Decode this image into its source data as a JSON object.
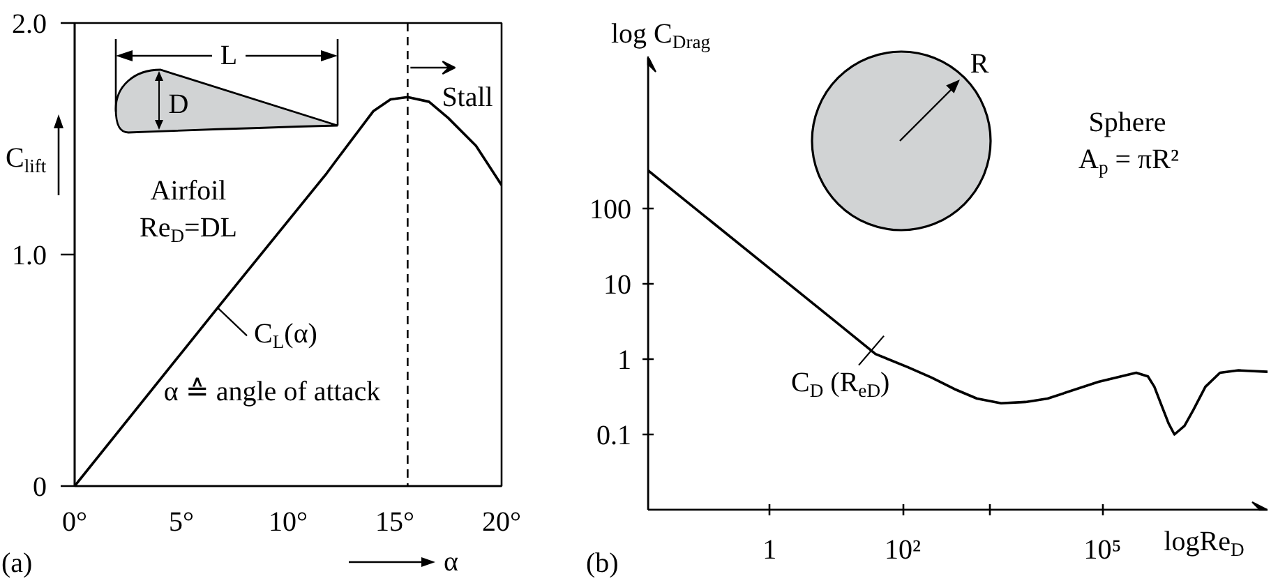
{
  "chart_data": [
    {
      "type": "line",
      "x": [
        0,
        6.7,
        11.8,
        12.2,
        13.1,
        14.0,
        14.8,
        15.6,
        16.6,
        17.5,
        18.8,
        20
      ],
      "series": [
        {
          "color": "#000000",
          "values": [
            0,
            0.77,
            1.35,
            1.4,
            1.51,
            1.62,
            1.67,
            1.68,
            1.66,
            1.59,
            1.47,
            1.3
          ]
        }
      ],
      "xlim": [
        0,
        20
      ],
      "ylim": [
        0,
        2
      ],
      "xticks": [
        {
          "value": 0,
          "label": "0°"
        },
        {
          "value": 5,
          "label": "5°"
        },
        {
          "value": 10,
          "label": "10°"
        },
        {
          "value": 15,
          "label": "15°"
        },
        {
          "value": 20,
          "label": "20°"
        }
      ],
      "yticks": [
        0,
        {
          "value": 1,
          "label": "1.0"
        },
        {
          "value": 2,
          "label": "2.0"
        }
      ],
      "xlabel": "α",
      "ylabel": "C$_{lift}$",
      "ref_lines": [
        {
          "axis": "x",
          "value": 15.6,
          "label": "Stall",
          "line_style": "dashed",
          "color": "#000000"
        }
      ],
      "annotations": [
        "Airfoil",
        "Re$_{D}$=DL",
        {
          "text": "C$_{L}$(α)",
          "x": 6.7,
          "y": 0.77
        },
        "α ≙ angle of attack",
        "L",
        "D",
        "(a)"
      ],
      "grid": false
    },
    {
      "type": "line",
      "log": "xy",
      "x": [
        0.015,
        1,
        10,
        39,
        120,
        270,
        600,
        1300,
        3000,
        7000,
        15000,
        87000,
        320000,
        480000,
        600000,
        760000,
        980000,
        1200000,
        1700000,
        2300000,
        3500000,
        5800000,
        11000000,
        30000000
      ],
      "series": [
        {
          "color": "#000000",
          "values": [
            320,
            16,
            3.1,
            1.17,
            0.78,
            0.57,
            0.4,
            0.3,
            0.26,
            0.27,
            0.3,
            0.5,
            0.66,
            0.59,
            0.43,
            0.25,
            0.14,
            0.1,
            0.13,
            0.21,
            0.43,
            0.66,
            0.71,
            0.68
          ]
        }
      ],
      "xlim": [
        0.015,
        30000000
      ],
      "ylim": [
        0.01,
        10000
      ],
      "xticks": [
        1,
        {
          "value": 100,
          "label": "10²"
        },
        {
          "value": 2000,
          "label": null
        },
        {
          "value": 100000,
          "label": "10⁵"
        }
      ],
      "yticks": [
        0.1,
        1,
        10,
        100
      ],
      "xlabel": "logRe$_{D}$",
      "ylabel": "log C$_{Drag}$",
      "annotations": [
        "Sphere",
        "A$_{p}$ = πR²",
        {
          "text": "C$_{D}$ (R$_{eD}$)",
          "x": 39,
          "y": 1.17
        },
        "R",
        "(b)"
      ],
      "grid": false
    }
  ]
}
